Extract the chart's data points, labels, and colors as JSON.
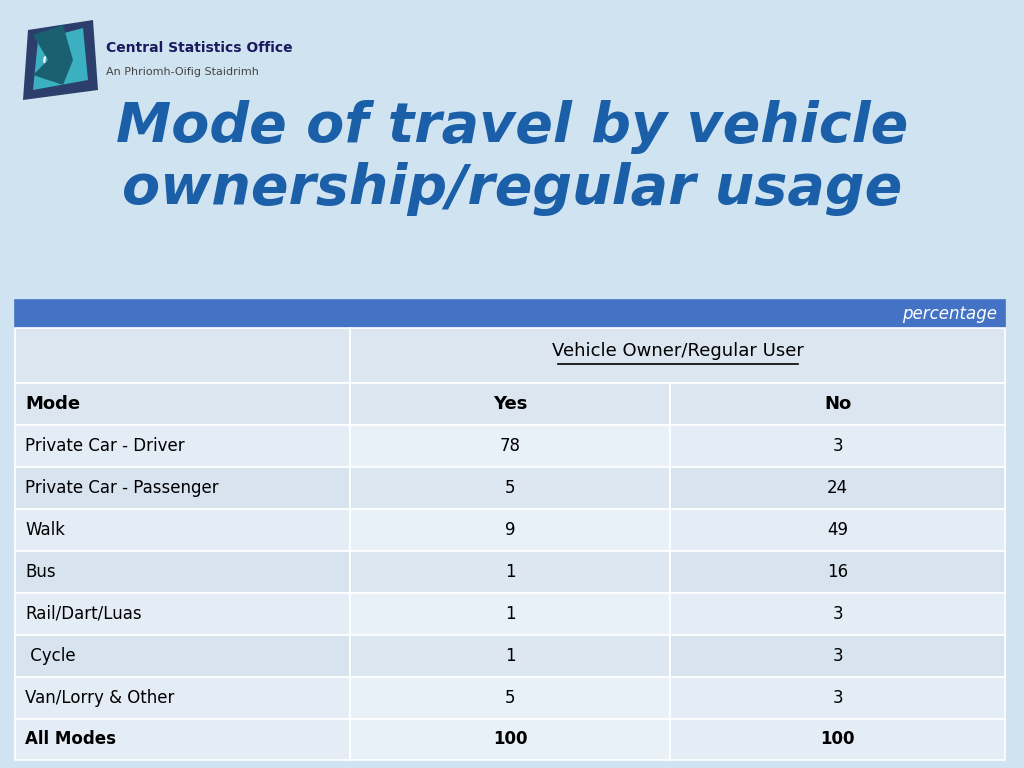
{
  "title_line1": "Mode of travel by vehicle",
  "title_line2": "ownership/regular usage",
  "title_color": "#1a5fa8",
  "bg_color": "#cfe3f0",
  "header_blue": "#4472c4",
  "percentage_label": "percentage",
  "col_header_span": "Vehicle Owner/Regular User",
  "col1_header": "Mode",
  "col2_header": "Yes",
  "col3_header": "No",
  "rows": [
    [
      "Private Car - Driver",
      "78",
      "3"
    ],
    [
      "Private Car - Passenger",
      "5",
      "24"
    ],
    [
      "Walk",
      "9",
      "49"
    ],
    [
      "Bus",
      "1",
      "16"
    ],
    [
      "Rail/Dart/Luas",
      "1",
      "3"
    ],
    [
      " Cycle",
      "1",
      "3"
    ],
    [
      "Van/Lorry & Other",
      "5",
      "3"
    ]
  ],
  "last_row": [
    "All Modes",
    "100",
    "100"
  ],
  "logo_org": "Central Statistics Office",
  "logo_sub": "An Phriomh-Oifig Staidrimh",
  "row_colors_odd": [
    "#dde5f0",
    "#dde5f0",
    "#dde5f0"
  ],
  "row_colors_even": [
    "#e8eef7",
    "#e8eef7",
    "#e8eef7"
  ],
  "span_header_color": "#dce6f1",
  "col_header_color": "#dce6f1"
}
